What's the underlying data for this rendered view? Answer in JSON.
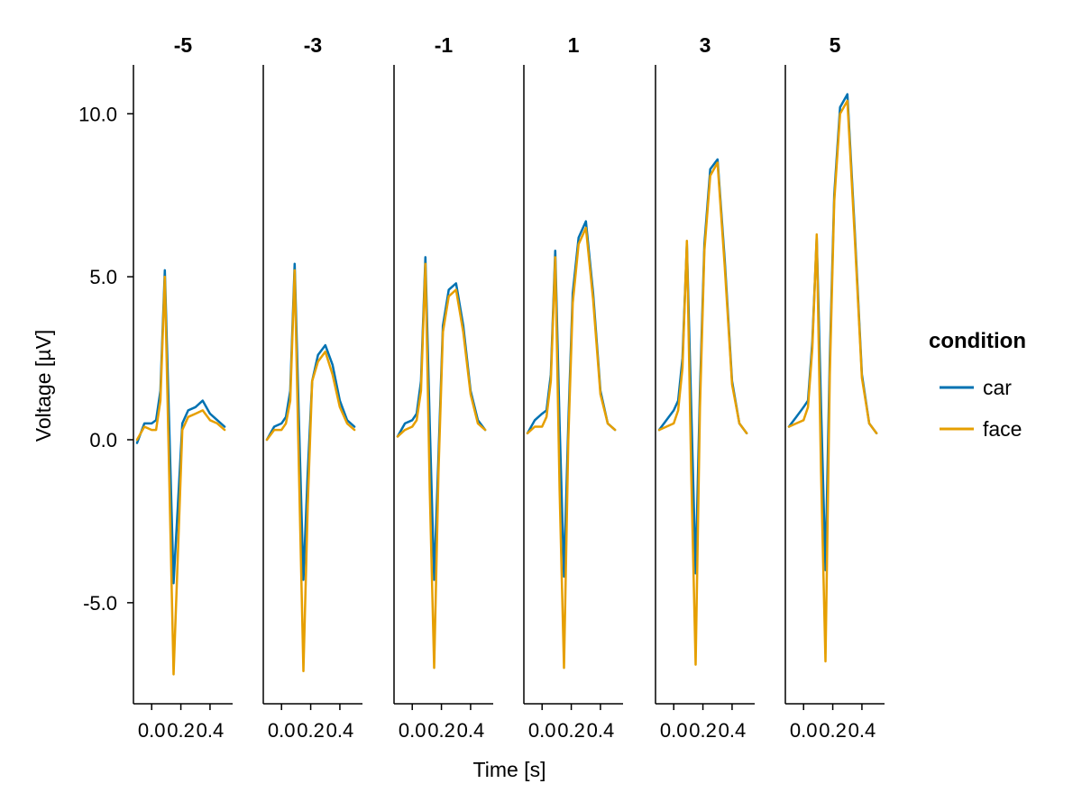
{
  "chart_data": {
    "type": "line",
    "xlabel": "Time [s]",
    "ylabel": "Voltage [µV]",
    "ylim": [
      -8.1,
      11.5
    ],
    "xlim": [
      -0.125,
      0.555
    ],
    "yticks": [
      -5.0,
      0.0,
      5.0,
      10.0
    ],
    "ytick_labels": [
      "-5.0",
      "0.0",
      "5.0",
      "10.0"
    ],
    "xticks": [
      0.0,
      0.2,
      0.4
    ],
    "xtick_labels": [
      "0.0",
      "0.2",
      "0.4"
    ],
    "grid": false,
    "legend": {
      "title": "condition",
      "placement": "right",
      "entries": [
        {
          "name": "car",
          "color": "#0072B2"
        },
        {
          "name": "face",
          "color": "#E69F00"
        }
      ]
    },
    "panels": [
      {
        "title": "-5",
        "series": [
          {
            "name": "car",
            "x": [
              -0.1,
              -0.05,
              0.0,
              0.03,
              0.06,
              0.09,
              0.12,
              0.15,
              0.18,
              0.21,
              0.25,
              0.3,
              0.35,
              0.4,
              0.45,
              0.5
            ],
            "y": [
              -0.1,
              0.5,
              0.5,
              0.6,
              1.5,
              5.2,
              0.5,
              -4.4,
              -2.0,
              0.5,
              0.9,
              1.0,
              1.2,
              0.8,
              0.6,
              0.4
            ]
          },
          {
            "name": "face",
            "x": [
              -0.1,
              -0.05,
              0.0,
              0.03,
              0.06,
              0.09,
              0.12,
              0.15,
              0.18,
              0.21,
              0.25,
              0.3,
              0.35,
              0.4,
              0.45,
              0.5
            ],
            "y": [
              0.0,
              0.4,
              0.3,
              0.3,
              1.2,
              5.0,
              -1.0,
              -7.2,
              -3.5,
              0.3,
              0.7,
              0.8,
              0.9,
              0.6,
              0.5,
              0.3
            ]
          }
        ]
      },
      {
        "title": "-3",
        "series": [
          {
            "name": "car",
            "x": [
              -0.1,
              -0.05,
              0.0,
              0.03,
              0.06,
              0.09,
              0.12,
              0.15,
              0.18,
              0.21,
              0.25,
              0.3,
              0.35,
              0.4,
              0.45,
              0.5
            ],
            "y": [
              0.0,
              0.4,
              0.5,
              0.7,
              1.5,
              5.4,
              0.5,
              -4.3,
              -1.0,
              1.8,
              2.6,
              2.9,
              2.3,
              1.2,
              0.6,
              0.4
            ]
          },
          {
            "name": "face",
            "x": [
              -0.1,
              -0.05,
              0.0,
              0.03,
              0.06,
              0.09,
              0.12,
              0.15,
              0.18,
              0.21,
              0.25,
              0.3,
              0.35,
              0.4,
              0.45,
              0.5
            ],
            "y": [
              0.0,
              0.3,
              0.3,
              0.5,
              1.2,
              5.2,
              -1.0,
              -7.1,
              -2.0,
              1.8,
              2.4,
              2.7,
              2.0,
              1.0,
              0.5,
              0.3
            ]
          }
        ]
      },
      {
        "title": "-1",
        "series": [
          {
            "name": "car",
            "x": [
              -0.1,
              -0.05,
              0.0,
              0.03,
              0.06,
              0.09,
              0.12,
              0.15,
              0.18,
              0.21,
              0.25,
              0.3,
              0.35,
              0.4,
              0.45,
              0.5
            ],
            "y": [
              0.1,
              0.5,
              0.6,
              0.8,
              1.8,
              5.6,
              0.5,
              -4.3,
              -0.5,
              3.5,
              4.6,
              4.8,
              3.5,
              1.5,
              0.6,
              0.3
            ]
          },
          {
            "name": "face",
            "x": [
              -0.1,
              -0.05,
              0.0,
              0.03,
              0.06,
              0.09,
              0.12,
              0.15,
              0.18,
              0.21,
              0.25,
              0.3,
              0.35,
              0.4,
              0.45,
              0.5
            ],
            "y": [
              0.1,
              0.3,
              0.4,
              0.6,
              1.5,
              5.4,
              -1.5,
              -7.0,
              -1.0,
              3.3,
              4.4,
              4.6,
              3.3,
              1.4,
              0.5,
              0.3
            ]
          }
        ]
      },
      {
        "title": "1",
        "series": [
          {
            "name": "car",
            "x": [
              -0.1,
              -0.05,
              0.0,
              0.03,
              0.06,
              0.09,
              0.12,
              0.15,
              0.18,
              0.21,
              0.25,
              0.3,
              0.35,
              0.4,
              0.45,
              0.5
            ],
            "y": [
              0.2,
              0.6,
              0.8,
              0.9,
              2.0,
              5.8,
              0.5,
              -4.2,
              0.5,
              4.5,
              6.2,
              6.7,
              4.5,
              1.5,
              0.5,
              0.3
            ]
          },
          {
            "name": "face",
            "x": [
              -0.1,
              -0.05,
              0.0,
              0.03,
              0.06,
              0.09,
              0.12,
              0.15,
              0.18,
              0.21,
              0.25,
              0.3,
              0.35,
              0.4,
              0.45,
              0.5
            ],
            "y": [
              0.2,
              0.4,
              0.4,
              0.7,
              1.8,
              5.6,
              -1.5,
              -7.0,
              0.0,
              4.2,
              6.0,
              6.5,
              4.3,
              1.4,
              0.5,
              0.3
            ]
          }
        ]
      },
      {
        "title": "3",
        "series": [
          {
            "name": "car",
            "x": [
              -0.1,
              -0.05,
              0.0,
              0.03,
              0.06,
              0.09,
              0.12,
              0.15,
              0.18,
              0.21,
              0.25,
              0.3,
              0.35,
              0.4,
              0.45,
              0.5
            ],
            "y": [
              0.3,
              0.6,
              0.9,
              1.2,
              2.5,
              6.0,
              1.0,
              -4.1,
              1.5,
              6.0,
              8.3,
              8.6,
              5.5,
              1.8,
              0.5,
              0.2
            ]
          },
          {
            "name": "face",
            "x": [
              -0.1,
              -0.05,
              0.0,
              0.03,
              0.06,
              0.09,
              0.12,
              0.15,
              0.18,
              0.21,
              0.25,
              0.3,
              0.35,
              0.4,
              0.45,
              0.5
            ],
            "y": [
              0.3,
              0.4,
              0.5,
              0.9,
              2.2,
              6.1,
              -1.0,
              -6.9,
              1.0,
              5.8,
              8.1,
              8.5,
              5.3,
              1.7,
              0.5,
              0.2
            ]
          }
        ]
      },
      {
        "title": "5",
        "series": [
          {
            "name": "car",
            "x": [
              -0.1,
              -0.05,
              0.0,
              0.03,
              0.06,
              0.09,
              0.12,
              0.15,
              0.18,
              0.21,
              0.25,
              0.3,
              0.35,
              0.4,
              0.45,
              0.5
            ],
            "y": [
              0.4,
              0.7,
              1.0,
              1.2,
              3.0,
              6.2,
              1.0,
              -4.0,
              2.5,
              7.5,
              10.2,
              10.6,
              6.5,
              2.0,
              0.5,
              0.2
            ]
          },
          {
            "name": "face",
            "x": [
              -0.1,
              -0.05,
              0.0,
              0.03,
              0.06,
              0.09,
              0.12,
              0.15,
              0.18,
              0.21,
              0.25,
              0.3,
              0.35,
              0.4,
              0.45,
              0.5
            ],
            "y": [
              0.4,
              0.5,
              0.6,
              1.0,
              2.8,
              6.3,
              -1.0,
              -6.8,
              2.0,
              7.3,
              10.0,
              10.4,
              6.3,
              1.9,
              0.5,
              0.2
            ]
          }
        ]
      }
    ]
  }
}
